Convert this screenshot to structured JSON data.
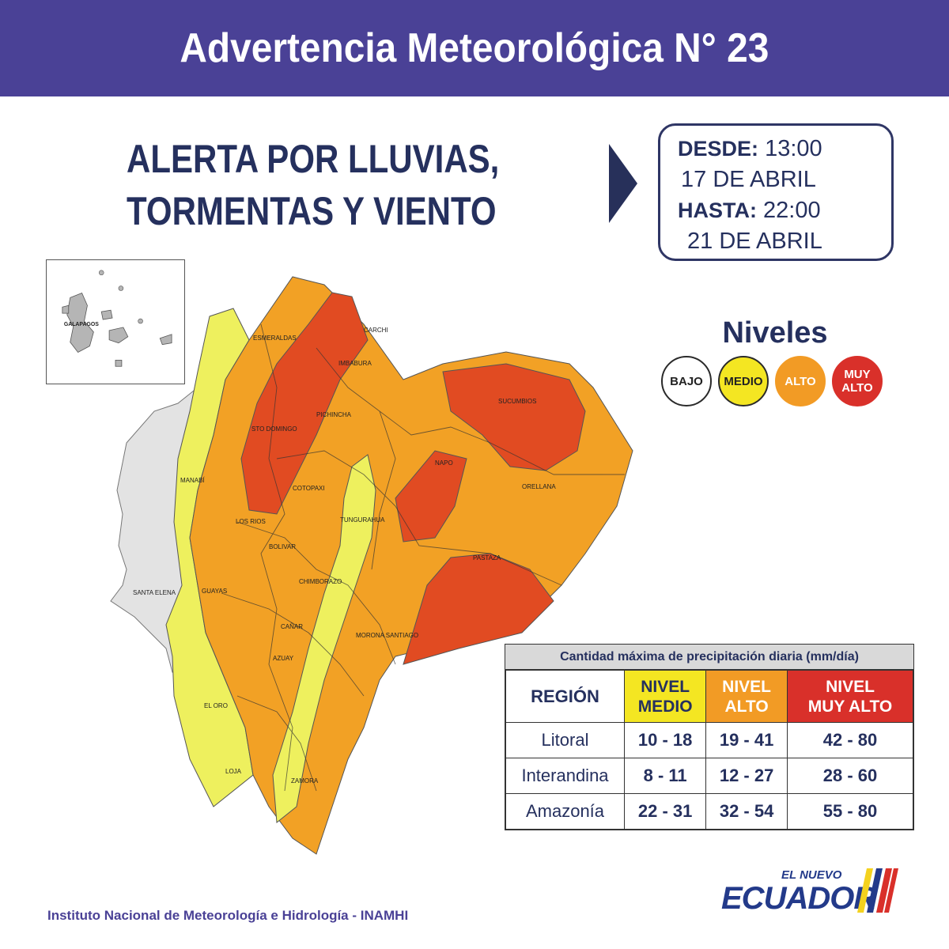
{
  "header": {
    "title": "Advertencia Meteorológica N° 23"
  },
  "alert": {
    "line1": "ALERTA POR LLUVIAS,",
    "line2": "TORMENTAS Y VIENTO"
  },
  "dates": {
    "desde_label": "DESDE:",
    "desde_time": "13:00",
    "desde_date": "17 DE ABRIL",
    "hasta_label": "HASTA:",
    "hasta_time": "22:00",
    "hasta_date": "21 DE ABRIL"
  },
  "levels": {
    "title": "Niveles",
    "items": [
      {
        "label": "BAJO",
        "color": "#ffffff"
      },
      {
        "label": "MEDIO",
        "color": "#f4e622"
      },
      {
        "label": "ALTO",
        "color": "#f29b25"
      },
      {
        "label_line1": "MUY",
        "label_line2": "ALTO",
        "color": "#d9302a"
      }
    ]
  },
  "map": {
    "inset_label": "GALAPAGOS",
    "provinces": [
      "ESMERALDAS",
      "CARCHI",
      "IMBABURA",
      "SUCUMBIOS",
      "PICHINCHA",
      "STO DOMINGO",
      "MANABÍ",
      "NAPO",
      "ORELLANA",
      "COTOPAXI",
      "LOS RIOS",
      "TUNGURAHUA",
      "BOLIVAR",
      "PASTAZA",
      "CHIMBORAZO",
      "SANTA ELENA",
      "GUAYAS",
      "MORONA SANTIAGO",
      "CAÑAR",
      "AZUAY",
      "EL ORO",
      "LOJA",
      "ZAMORA"
    ]
  },
  "precipitation": {
    "caption": "Cantidad máxima de precipitación diaria (mm/día)",
    "region_header": "REGIÓN",
    "col_medio": [
      "NIVEL",
      "MEDIO"
    ],
    "col_alto": [
      "NIVEL",
      "ALTO"
    ],
    "col_muyalto": [
      "NIVEL",
      "MUY ALTO"
    ],
    "rows": [
      {
        "region": "Litoral",
        "medio": "10 - 18",
        "alto": "19 - 41",
        "muyalto": "42 - 80"
      },
      {
        "region": "Interandina",
        "medio": "8 - 11",
        "alto": "12 - 27",
        "muyalto": "28 - 60"
      },
      {
        "region": "Amazonía",
        "medio": "22 - 31",
        "alto": "32 - 54",
        "muyalto": "55 - 80"
      }
    ]
  },
  "footer": {
    "text": "Instituto Nacional de Meteorología e Hidrología - INAMHI"
  },
  "logo": {
    "small": "EL NUEVO",
    "big": "ECUADOR"
  }
}
